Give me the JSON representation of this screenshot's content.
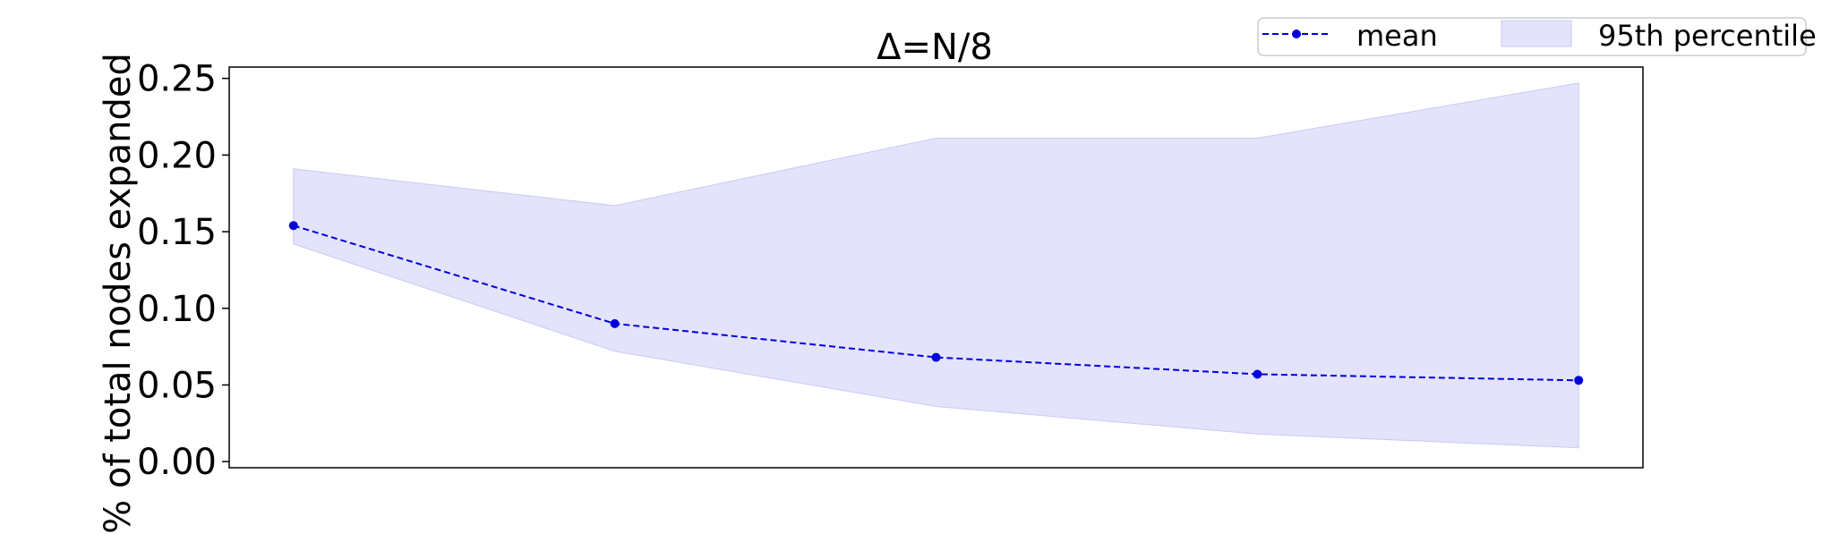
{
  "chart_data": {
    "type": "line",
    "title": "Δ=N/8",
    "xlabel": "",
    "ylabel": "% of total nodes expanded",
    "x": [
      1,
      2,
      3,
      4,
      5
    ],
    "ylim": [
      0,
      0.26
    ],
    "yticks": [
      0.0,
      0.05,
      0.1,
      0.15,
      0.2,
      0.25
    ],
    "ytick_labels": [
      "0.00",
      "0.05",
      "0.10",
      "0.15",
      "0.20",
      "0.25"
    ],
    "xticks_visible": false,
    "grid": false,
    "legend_position": "top-right",
    "series": [
      {
        "name": "mean",
        "kind": "line",
        "style": "dashed",
        "marker": "circle",
        "color": "#0000dd",
        "values": [
          0.154,
          0.09,
          0.068,
          0.057,
          0.053
        ]
      },
      {
        "name": "95th percentile",
        "kind": "band",
        "color": "#e3e3fb",
        "edge_color": "#c9c9f4",
        "upper": [
          0.191,
          0.167,
          0.211,
          0.211,
          0.247
        ],
        "lower": [
          0.142,
          0.072,
          0.036,
          0.018,
          0.009
        ]
      }
    ]
  }
}
